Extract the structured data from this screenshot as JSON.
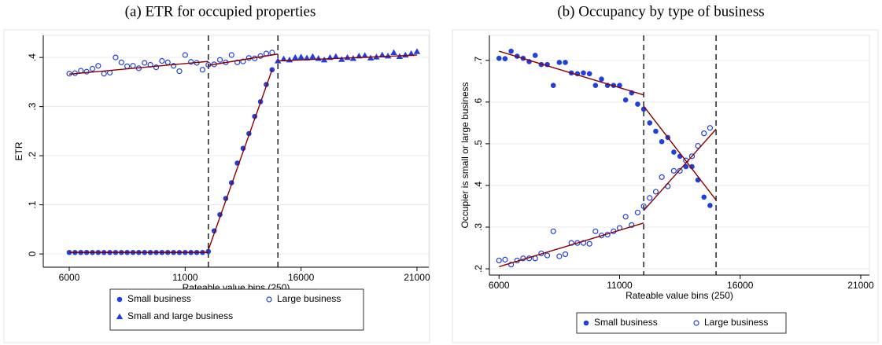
{
  "chart_data": [
    {
      "type": "scatter",
      "title": "(a) ETR for occupied properties",
      "x_label": "Rateable value bins (250)",
      "y_label": "ETR",
      "xlim": [
        4880,
        21510
      ],
      "ylim": [
        -0.027,
        0.445
      ],
      "xticks": [
        6000,
        11000,
        16000,
        21000
      ],
      "yticks": [
        0,
        {
          "value": 0.1,
          "label": ".1"
        },
        {
          "value": 0.2,
          "label": ".2"
        },
        {
          "value": 0.3,
          "label": ".3"
        },
        {
          "value": 0.4,
          "label": ".4"
        }
      ],
      "grid": true,
      "vlines": [
        12000,
        15000
      ],
      "series": [
        {
          "name": "Small business",
          "color": "#1f3fe0",
          "marker": "circle",
          "x": [
            6000,
            6250,
            6500,
            6750,
            7000,
            7250,
            7500,
            7750,
            8000,
            8250,
            8500,
            8750,
            9000,
            9250,
            9500,
            9750,
            10000,
            10250,
            10500,
            10750,
            11000,
            11250,
            11500,
            11750,
            12000,
            12250,
            12500,
            12750,
            13000,
            13250,
            13500,
            13750,
            14000,
            14250,
            14500,
            14750
          ],
          "values": [
            0.003,
            0.003,
            0.003,
            0.003,
            0.003,
            0.003,
            0.003,
            0.003,
            0.003,
            0.003,
            0.003,
            0.003,
            0.003,
            0.003,
            0.003,
            0.003,
            0.003,
            0.003,
            0.003,
            0.003,
            0.003,
            0.003,
            0.003,
            0.003,
            0.005,
            0.047,
            0.08,
            0.113,
            0.145,
            0.185,
            0.215,
            0.245,
            0.28,
            0.31,
            0.345,
            0.375
          ]
        },
        {
          "name": "Large business",
          "color": "#1f3fe0",
          "marker": "hollow-circle",
          "x": [
            6000,
            6250,
            6500,
            6750,
            7000,
            7250,
            7500,
            7750,
            8000,
            8250,
            8500,
            8750,
            9000,
            9250,
            9500,
            9750,
            10000,
            10250,
            10500,
            10750,
            11000,
            11250,
            11500,
            11750,
            12000,
            12250,
            12500,
            12750,
            13000,
            13250,
            13500,
            13750,
            14000,
            14250,
            14500,
            14750
          ],
          "values": [
            0.367,
            0.368,
            0.373,
            0.371,
            0.377,
            0.383,
            0.367,
            0.369,
            0.4,
            0.39,
            0.382,
            0.383,
            0.378,
            0.389,
            0.385,
            0.38,
            0.393,
            0.39,
            0.383,
            0.372,
            0.405,
            0.391,
            0.389,
            0.375,
            0.385,
            0.386,
            0.395,
            0.39,
            0.405,
            0.39,
            0.392,
            0.399,
            0.398,
            0.403,
            0.408,
            0.41
          ]
        },
        {
          "name": "Small and large business",
          "color": "#1f3fe0",
          "marker": "triangle",
          "x": [
            15000,
            15250,
            15500,
            15750,
            16000,
            16250,
            16500,
            16750,
            17000,
            17250,
            17500,
            17750,
            18000,
            18250,
            18500,
            18750,
            19000,
            19250,
            19500,
            19750,
            20000,
            20250,
            20500,
            20750,
            21000
          ],
          "values": [
            0.393,
            0.397,
            0.395,
            0.4,
            0.401,
            0.399,
            0.402,
            0.398,
            0.395,
            0.4,
            0.402,
            0.396,
            0.4,
            0.398,
            0.403,
            0.404,
            0.399,
            0.401,
            0.405,
            0.403,
            0.41,
            0.402,
            0.405,
            0.408,
            0.412
          ]
        }
      ],
      "fit_lines": [
        {
          "color": "#8b0000",
          "x": [
            6000,
            12000
          ],
          "values": [
            0.003,
            0.003
          ]
        },
        {
          "color": "#8b0000",
          "x": [
            12000,
            14750
          ],
          "values": [
            0.008,
            0.375
          ]
        },
        {
          "color": "#8b0000",
          "x": [
            6000,
            12000
          ],
          "values": [
            0.366,
            0.392
          ]
        },
        {
          "color": "#8b0000",
          "x": [
            12000,
            15000
          ],
          "values": [
            0.384,
            0.407
          ]
        },
        {
          "color": "#8b0000",
          "x": [
            15000,
            21000
          ],
          "values": [
            0.393,
            0.405
          ]
        }
      ]
    },
    {
      "type": "scatter",
      "title": "(b) Occupancy by type of business",
      "x_label": "Rateable value bins (250)",
      "y_label": "Occupier is small or large business",
      "xlim": [
        5600,
        21360
      ],
      "ylim": [
        0.185,
        0.76
      ],
      "xticks": [
        6000,
        11000,
        16000,
        21000
      ],
      "yticks": [
        {
          "value": 0.2,
          "label": ".2"
        },
        {
          "value": 0.3,
          "label": ".3"
        },
        {
          "value": 0.4,
          "label": ".4"
        },
        {
          "value": 0.5,
          "label": ".5"
        },
        {
          "value": 0.6,
          "label": ".6"
        },
        {
          "value": 0.7,
          "label": ".7"
        }
      ],
      "grid": true,
      "vlines": [
        12000,
        15000
      ],
      "series": [
        {
          "name": "Small business",
          "color": "#1f3fe0",
          "marker": "circle",
          "x": [
            6000,
            6250,
            6500,
            6750,
            7000,
            7250,
            7500,
            7750,
            8000,
            8250,
            8500,
            8750,
            9000,
            9250,
            9500,
            9750,
            10000,
            10250,
            10500,
            10750,
            11000,
            11250,
            11500,
            11750,
            12000,
            12250,
            12500,
            12750,
            13000,
            13250,
            13500,
            13750,
            14000,
            14250,
            14500,
            14750
          ],
          "values": [
            0.705,
            0.704,
            0.722,
            0.71,
            0.705,
            0.697,
            0.712,
            0.69,
            0.69,
            0.64,
            0.695,
            0.695,
            0.67,
            0.668,
            0.67,
            0.668,
            0.64,
            0.655,
            0.64,
            0.64,
            0.64,
            0.605,
            0.622,
            0.595,
            0.583,
            0.55,
            0.53,
            0.505,
            0.515,
            0.48,
            0.47,
            0.445,
            0.445,
            0.413,
            0.372,
            0.352
          ]
        },
        {
          "name": "Large business",
          "color": "#1f3fe0",
          "marker": "hollow-circle",
          "x": [
            6000,
            6250,
            6500,
            6750,
            7000,
            7250,
            7500,
            7750,
            8000,
            8250,
            8500,
            8750,
            9000,
            9250,
            9500,
            9750,
            10000,
            10250,
            10500,
            10750,
            11000,
            11250,
            11500,
            11750,
            12000,
            12250,
            12500,
            12750,
            13000,
            13250,
            13500,
            13750,
            14000,
            14250,
            14500,
            14750
          ],
          "values": [
            0.22,
            0.222,
            0.21,
            0.22,
            0.225,
            0.225,
            0.225,
            0.237,
            0.232,
            0.29,
            0.23,
            0.235,
            0.262,
            0.262,
            0.262,
            0.26,
            0.29,
            0.28,
            0.282,
            0.29,
            0.298,
            0.325,
            0.305,
            0.335,
            0.35,
            0.37,
            0.385,
            0.42,
            0.398,
            0.435,
            0.435,
            0.46,
            0.47,
            0.495,
            0.525,
            0.538
          ]
        }
      ],
      "fit_lines": [
        {
          "color": "#8b0000",
          "x": [
            6000,
            12000
          ],
          "values": [
            0.722,
            0.617
          ]
        },
        {
          "color": "#8b0000",
          "x": [
            12000,
            15000
          ],
          "values": [
            0.59,
            0.365
          ]
        },
        {
          "color": "#8b0000",
          "x": [
            6000,
            12000
          ],
          "values": [
            0.205,
            0.31
          ]
        },
        {
          "color": "#8b0000",
          "x": [
            12000,
            15000
          ],
          "values": [
            0.34,
            0.535
          ]
        }
      ]
    }
  ]
}
